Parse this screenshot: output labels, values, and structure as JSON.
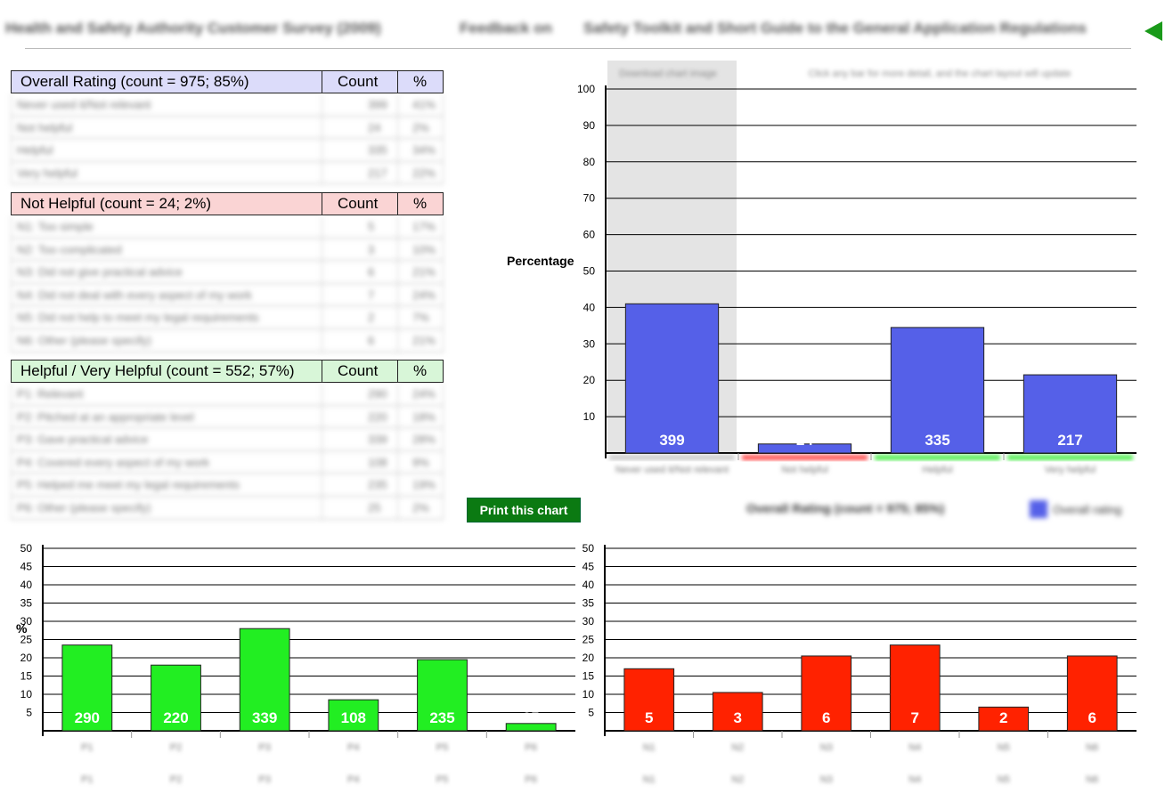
{
  "header": {
    "title": "Health and Safety Authority Customer Survey (2009)",
    "section": "Feedback on",
    "subject": "Safety Toolkit and Short Guide to the General Application Regulations"
  },
  "tables": [
    {
      "heading": "Overall Rating (count = 975; 85%)",
      "count_label": "Count",
      "pct_label": "%",
      "header_color": "#dcdcfa",
      "rows": [
        {
          "label": "Never used it/Not relevant",
          "count": "399",
          "pct": "41%"
        },
        {
          "label": "Not helpful",
          "count": "24",
          "pct": "2%"
        },
        {
          "label": "Helpful",
          "count": "335",
          "pct": "34%"
        },
        {
          "label": "Very helpful",
          "count": "217",
          "pct": "22%"
        }
      ]
    },
    {
      "heading": "Not Helpful (count = 24; 2%)",
      "count_label": "Count",
      "pct_label": "%",
      "header_color": "#fad4d4",
      "rows": [
        {
          "label": "N1: Too simple",
          "count": "5",
          "pct": "17%"
        },
        {
          "label": "N2: Too complicated",
          "count": "3",
          "pct": "10%"
        },
        {
          "label": "N3: Did not give practical advice",
          "count": "6",
          "pct": "21%"
        },
        {
          "label": "N4: Did not deal with every aspect of my work",
          "count": "7",
          "pct": "24%"
        },
        {
          "label": "N5: Did not help to meet my legal requirements",
          "count": "2",
          "pct": "7%"
        },
        {
          "label": "N6: Other (please specify)",
          "count": "6",
          "pct": "21%"
        }
      ]
    },
    {
      "heading": "Helpful / Very Helpful (count = 552; 57%)",
      "count_label": "Count",
      "pct_label": "%",
      "header_color": "#d8f6d8",
      "rows": [
        {
          "label": "P1: Relevant",
          "count": "290",
          "pct": "24%"
        },
        {
          "label": "P2: Pitched at an appropriate level",
          "count": "220",
          "pct": "18%"
        },
        {
          "label": "P3: Gave practical advice",
          "count": "339",
          "pct": "28%"
        },
        {
          "label": "P4: Covered every aspect of my work",
          "count": "108",
          "pct": "9%"
        },
        {
          "label": "P5: Helped me meet my legal requirements",
          "count": "235",
          "pct": "19%"
        },
        {
          "label": "P6: Other (please specify)",
          "count": "25",
          "pct": "2%"
        }
      ]
    }
  ],
  "print_button": "Print this chart",
  "main_chart_tabs": [
    "Download chart image",
    "Click any bar for more detail, and the chart layout will update"
  ],
  "main_chart_title": "Overall Rating (count = 975; 85%)",
  "main_chart_legend": "Overall rating",
  "chart_data": [
    {
      "type": "bar",
      "ylabel": "Percentage",
      "ylim": [
        0,
        100
      ],
      "yticks": [
        10,
        20,
        30,
        40,
        50,
        60,
        70,
        80,
        90,
        100
      ],
      "grid": true,
      "categories": [
        "Never used it/Not relevant",
        "Not helpful",
        "Helpful",
        "Very helpful"
      ],
      "category_colors": [
        "#cccccc",
        "#ff5555",
        "#55ee55",
        "#55ee55"
      ],
      "series": [
        {
          "name": "Overall rating",
          "values": [
            41,
            2.5,
            34.5,
            21.5
          ],
          "labels": [
            "399",
            "24",
            "335",
            "217"
          ],
          "color": "#5560e8"
        }
      ],
      "highlight_index": 0
    },
    {
      "type": "bar",
      "ylabel": "%",
      "ylim": [
        0,
        50
      ],
      "yticks": [
        5,
        10,
        15,
        20,
        25,
        30,
        35,
        40,
        45,
        50
      ],
      "grid": true,
      "categories": [
        "P1",
        "P2",
        "P3",
        "P4",
        "P5",
        "P6"
      ],
      "series": [
        {
          "values": [
            23.5,
            18,
            28,
            8.5,
            19.5,
            2
          ],
          "labels": [
            "290",
            "220",
            "339",
            "108",
            "235",
            "25"
          ],
          "color": "#22ee22"
        }
      ]
    },
    {
      "type": "bar",
      "ylabel": "",
      "ylim": [
        0,
        50
      ],
      "yticks": [
        5,
        10,
        15,
        20,
        25,
        30,
        35,
        40,
        45,
        50
      ],
      "grid": true,
      "categories": [
        "N1",
        "N2",
        "N3",
        "N4",
        "N5",
        "N6"
      ],
      "series": [
        {
          "values": [
            17,
            10.5,
            20.5,
            23.5,
            6.5,
            20.5
          ],
          "labels": [
            "5",
            "3",
            "6",
            "7",
            "2",
            "6"
          ],
          "color": "#ff2200"
        }
      ]
    }
  ]
}
